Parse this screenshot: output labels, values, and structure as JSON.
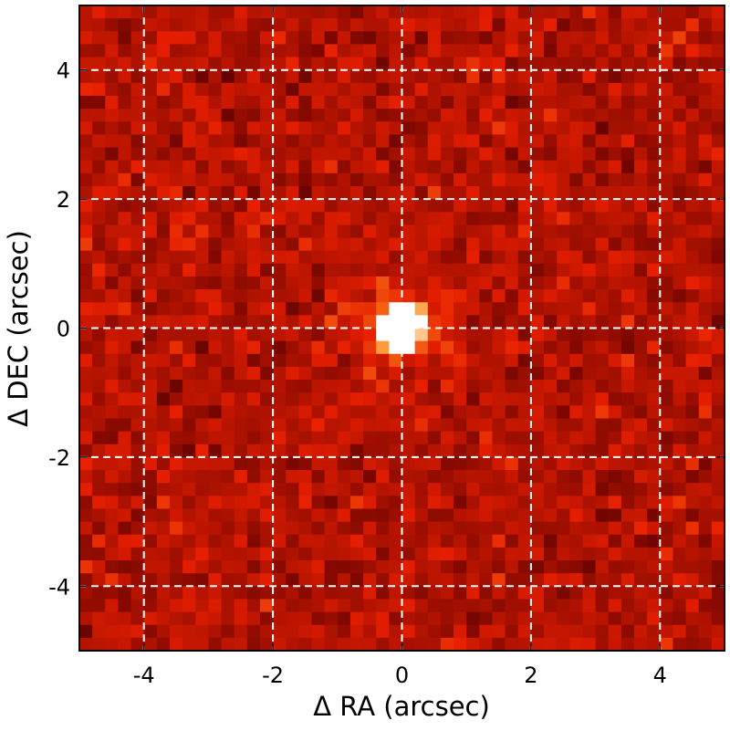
{
  "chart_data": {
    "type": "heatmap",
    "title": "",
    "xlabel": "Δ RA (arcsec)",
    "ylabel": "Δ DEC (arcsec)",
    "xlim": [
      -5,
      5
    ],
    "ylim": [
      -5,
      5
    ],
    "grid": true,
    "grid_style": "dashed white",
    "xticks": [
      -4,
      -2,
      0,
      2,
      4
    ],
    "yticks": [
      -4,
      -2,
      0,
      2,
      4
    ],
    "colormap": "red-orange-white (hot)",
    "pixel_scale_arcsec": 0.2,
    "npix": 50,
    "peak": {
      "ra": 0.0,
      "dec": 0.0,
      "description": "bright saturated (white) source at center"
    },
    "colors": {
      "low": "#3a0000",
      "mid": "#c42a00",
      "high": "#ff9a3a",
      "peak": "#ffffff"
    }
  }
}
